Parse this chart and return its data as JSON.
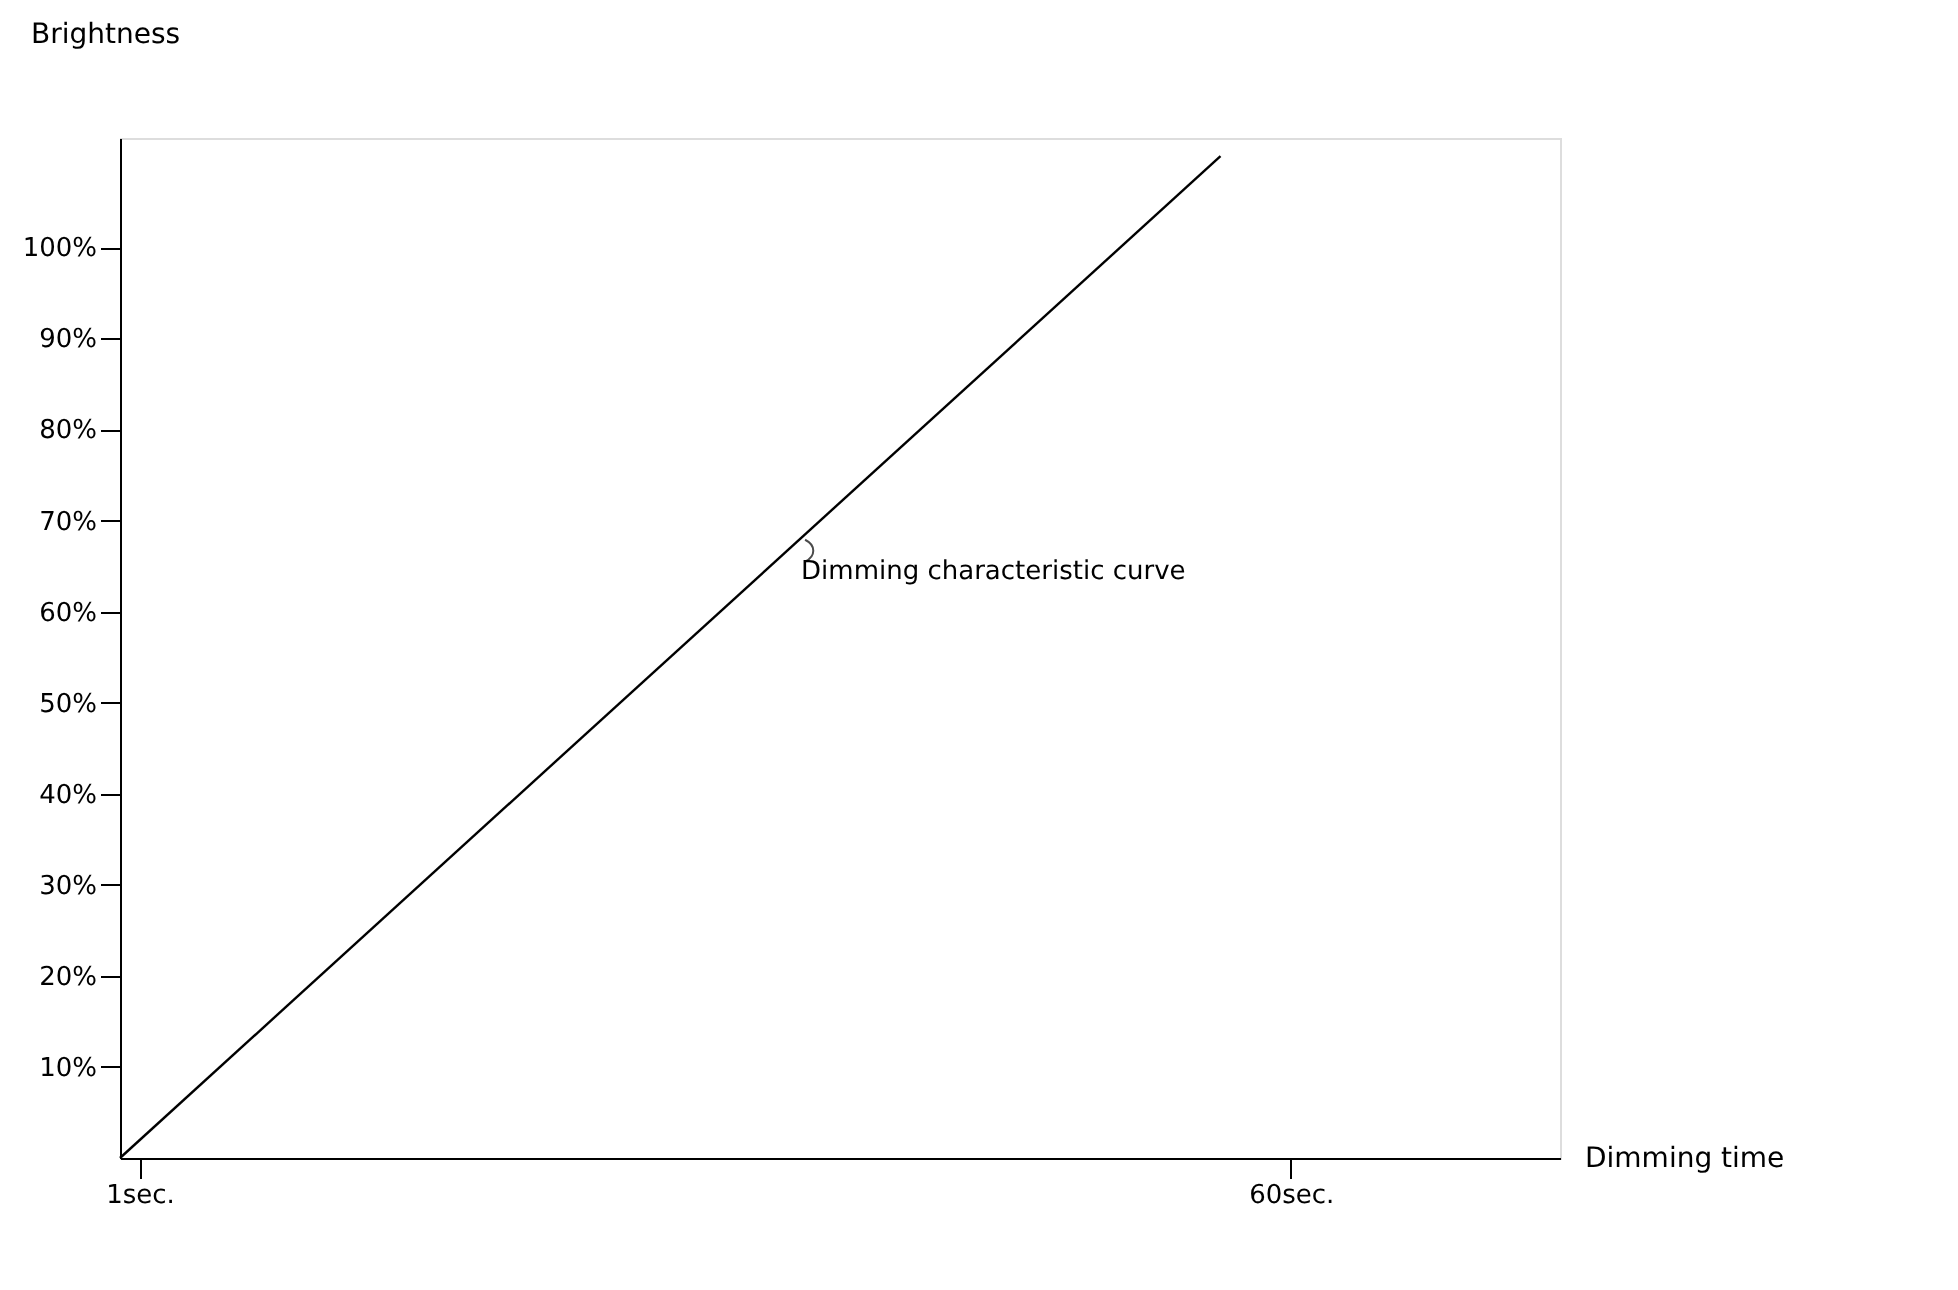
{
  "chart_data": {
    "type": "line",
    "xlabel": "Dimming time",
    "ylabel": "Brightness",
    "x": [
      0,
      56.4
    ],
    "series": [
      {
        "color": "#000000",
        "values": [
          0,
          110
        ]
      }
    ],
    "xlim": [
      0,
      73.8
    ],
    "ylim": [
      0,
      112
    ],
    "xticks": [
      {
        "value": 1,
        "label": "1sec."
      },
      {
        "value": 60,
        "label": "60sec."
      }
    ],
    "yticks": [
      {
        "value": 10,
        "label": "10%"
      },
      {
        "value": 20,
        "label": "20%"
      },
      {
        "value": 30,
        "label": "30%"
      },
      {
        "value": 40,
        "label": "40%"
      },
      {
        "value": 50,
        "label": "50%"
      },
      {
        "value": 60,
        "label": "60%"
      },
      {
        "value": 70,
        "label": "70%"
      },
      {
        "value": 80,
        "label": "80%"
      },
      {
        "value": 90,
        "label": "90%"
      },
      {
        "value": 100,
        "label": "100%"
      }
    ],
    "annotations": [
      {
        "text": "Dimming characteristic curve",
        "x": 34.7,
        "y": 68
      }
    ],
    "grid": false,
    "legend": false,
    "marker": "none",
    "line_style": "solid"
  }
}
